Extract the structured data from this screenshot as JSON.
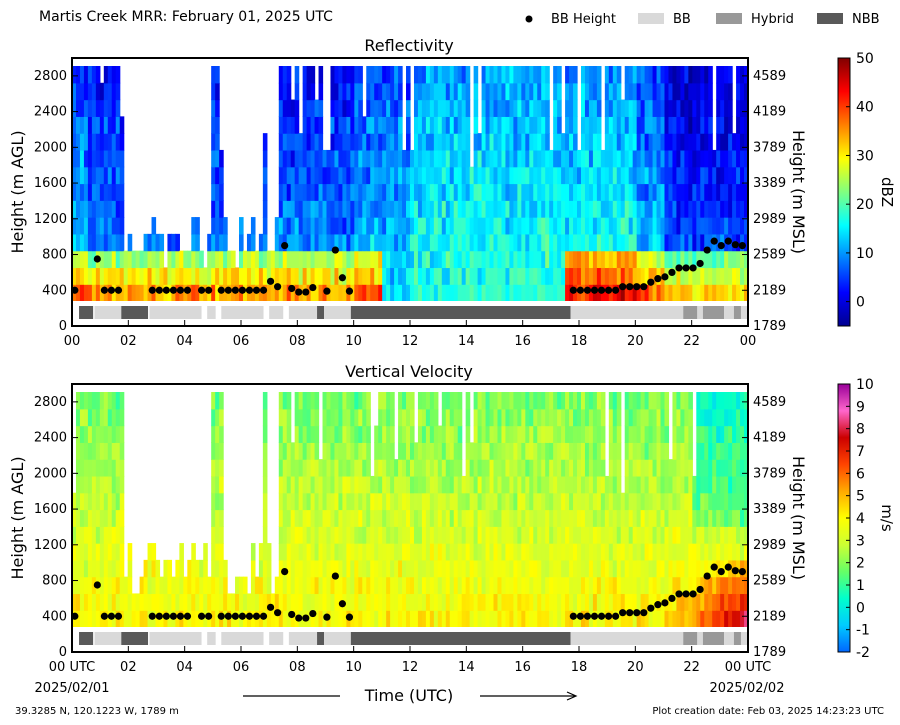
{
  "title": "Martis Creek MRR:  February 01, 2025 UTC",
  "legend": {
    "items": [
      {
        "label": "BB Height",
        "color": "#000000",
        "marker": "dot"
      },
      {
        "label": "BB",
        "color": "#d9d9d9",
        "marker": "box"
      },
      {
        "label": "Hybrid",
        "color": "#999999",
        "marker": "box"
      },
      {
        "label": "NBB",
        "color": "#595959",
        "marker": "box"
      }
    ]
  },
  "footer": {
    "location": "39.3285 N, 120.1223 W, 1789 m",
    "creation": "Plot creation date: Feb 03, 2025 14:23:23 UTC",
    "xlabel": "Time (UTC)",
    "date_start": "2025/02/01",
    "date_end": "2025/02/02"
  },
  "chart_data": [
    {
      "type": "heatmap",
      "title": "Reflectivity",
      "ylabel": "Height (m AGL)",
      "y2label": "Height (m MSL)",
      "xlim": [
        0,
        24
      ],
      "ylim": [
        0,
        3000
      ],
      "x_ticks": [
        "00",
        "02",
        "04",
        "06",
        "08",
        "10",
        "12",
        "14",
        "16",
        "18",
        "20",
        "22",
        "00"
      ],
      "y_ticks": [
        0,
        400,
        800,
        1200,
        1600,
        2000,
        2400,
        2800
      ],
      "y2_ticks": [
        1789,
        2189,
        2589,
        2989,
        3389,
        3789,
        4189,
        4589
      ],
      "colorbar": {
        "label": "dBZ",
        "min": -5,
        "max": 50,
        "ticks": [
          0,
          10,
          20,
          30,
          40,
          50
        ],
        "colormap": [
          "#00008f",
          "#0000ff",
          "#0080ff",
          "#00ffff",
          "#80ff80",
          "#ffff00",
          "#ff8000",
          "#ff0000",
          "#800000"
        ]
      }
    },
    {
      "type": "heatmap",
      "title": "Vertical Velocity",
      "ylabel": "Height (m AGL)",
      "y2label": "Height (m MSL)",
      "xlim": [
        0,
        24
      ],
      "ylim": [
        0,
        3000
      ],
      "x_ticks": [
        "00 UTC",
        "02",
        "04",
        "06",
        "08",
        "10",
        "12",
        "14",
        "16",
        "18",
        "20",
        "22",
        "00 UTC"
      ],
      "y_ticks": [
        0,
        400,
        800,
        1200,
        1600,
        2000,
        2400,
        2800
      ],
      "y2_ticks": [
        1789,
        2189,
        2589,
        2989,
        3389,
        3789,
        4189,
        4589
      ],
      "colorbar": {
        "label": "m/s",
        "min": -2,
        "max": 10,
        "ticks": [
          -2,
          -1,
          0,
          1,
          2,
          3,
          4,
          5,
          6,
          7,
          8,
          9,
          10
        ],
        "colormap": [
          "#0066ff",
          "#00ccff",
          "#00ffcc",
          "#66ff66",
          "#ccff33",
          "#ffff00",
          "#ffaa00",
          "#ff4400",
          "#cc0000",
          "#ff66cc",
          "#990099"
        ]
      }
    }
  ],
  "bb_height_points": [
    [
      0.1,
      400
    ],
    [
      0.9,
      750
    ],
    [
      1.15,
      400
    ],
    [
      1.4,
      400
    ],
    [
      1.65,
      400
    ],
    [
      2.85,
      400
    ],
    [
      3.1,
      400
    ],
    [
      3.35,
      400
    ],
    [
      3.6,
      400
    ],
    [
      3.85,
      400
    ],
    [
      4.1,
      400
    ],
    [
      4.6,
      400
    ],
    [
      4.85,
      400
    ],
    [
      5.3,
      400
    ],
    [
      5.55,
      400
    ],
    [
      5.8,
      400
    ],
    [
      6.05,
      400
    ],
    [
      6.3,
      400
    ],
    [
      6.55,
      400
    ],
    [
      6.8,
      400
    ],
    [
      7.05,
      500
    ],
    [
      7.3,
      440
    ],
    [
      7.55,
      900
    ],
    [
      7.8,
      420
    ],
    [
      8.05,
      380
    ],
    [
      8.3,
      380
    ],
    [
      8.55,
      430
    ],
    [
      9.05,
      390
    ],
    [
      9.35,
      850
    ],
    [
      9.6,
      540
    ],
    [
      9.85,
      390
    ],
    [
      17.8,
      400
    ],
    [
      18.05,
      400
    ],
    [
      18.3,
      400
    ],
    [
      18.55,
      400
    ],
    [
      18.8,
      400
    ],
    [
      19.05,
      400
    ],
    [
      19.3,
      400
    ],
    [
      19.55,
      440
    ],
    [
      19.8,
      440
    ],
    [
      20.05,
      440
    ],
    [
      20.3,
      440
    ],
    [
      20.55,
      490
    ],
    [
      20.8,
      530
    ],
    [
      21.05,
      550
    ],
    [
      21.3,
      600
    ],
    [
      21.55,
      650
    ],
    [
      21.8,
      650
    ],
    [
      22.05,
      650
    ],
    [
      22.3,
      700
    ],
    [
      22.55,
      850
    ],
    [
      22.8,
      950
    ],
    [
      23.05,
      900
    ],
    [
      23.3,
      950
    ],
    [
      23.55,
      910
    ],
    [
      23.8,
      900
    ]
  ],
  "bb_type_segments": [
    {
      "type": "NBB",
      "start": 0.25,
      "end": 0.75
    },
    {
      "type": "BB",
      "start": 0.8,
      "end": 1.75
    },
    {
      "type": "NBB",
      "start": 1.75,
      "end": 2.7
    },
    {
      "type": "BB",
      "start": 2.75,
      "end": 4.6
    },
    {
      "type": "BB",
      "start": 4.8,
      "end": 5.1
    },
    {
      "type": "BB",
      "start": 5.3,
      "end": 6.8
    },
    {
      "type": "BB",
      "start": 7.0,
      "end": 7.5
    },
    {
      "type": "BB",
      "start": 7.7,
      "end": 8.7
    },
    {
      "type": "NBB",
      "start": 8.7,
      "end": 8.95
    },
    {
      "type": "BB",
      "start": 8.95,
      "end": 9.9
    },
    {
      "type": "NBB",
      "start": 9.9,
      "end": 17.7
    },
    {
      "type": "BB",
      "start": 17.7,
      "end": 21.7
    },
    {
      "type": "Hybrid",
      "start": 21.7,
      "end": 22.2
    },
    {
      "type": "BB",
      "start": 22.2,
      "end": 22.4
    },
    {
      "type": "Hybrid",
      "start": 22.4,
      "end": 23.15
    },
    {
      "type": "BB",
      "start": 23.15,
      "end": 23.5
    },
    {
      "type": "Hybrid",
      "start": 23.5,
      "end": 23.75
    },
    {
      "type": "BB",
      "start": 23.75,
      "end": 24
    }
  ]
}
